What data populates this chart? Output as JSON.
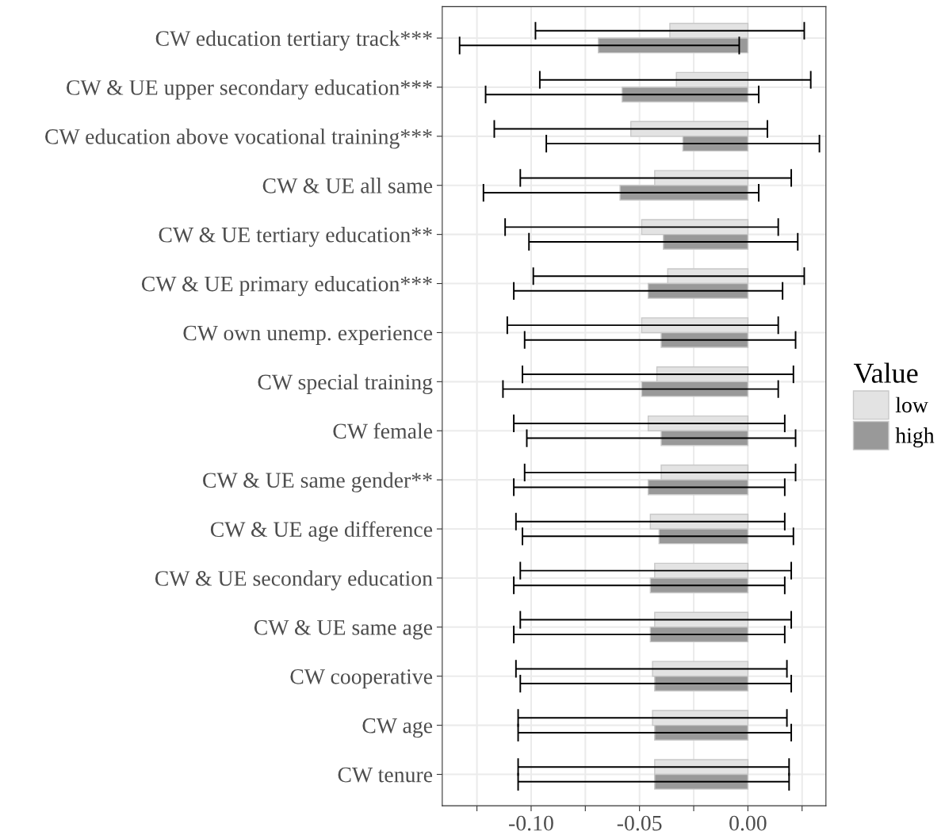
{
  "chart_data": {
    "type": "bar",
    "orientation": "horizontal",
    "categories": [
      "CW education tertiary track***",
      "CW & UE upper secondary education***",
      "CW education above vocational training***",
      "CW & UE all same",
      "CW & UE tertiary education**",
      "CW & UE primary education***",
      "CW own unemp. experience",
      "CW special training",
      "CW female",
      "CW & UE same gender**",
      "CW & UE age difference",
      "CW & UE secondary education",
      "CW & UE same age",
      "CW cooperative",
      "CW age",
      "CW tenure"
    ],
    "series": [
      {
        "name": "low",
        "color": "#e3e3e3",
        "values": [
          -0.036,
          -0.033,
          -0.054,
          -0.043,
          -0.049,
          -0.037,
          -0.049,
          -0.042,
          -0.046,
          -0.04,
          -0.045,
          -0.043,
          -0.043,
          -0.044,
          -0.044,
          -0.043
        ],
        "errors": [
          [
            -0.098,
            0.026
          ],
          [
            -0.096,
            0.029
          ],
          [
            -0.117,
            0.009
          ],
          [
            -0.105,
            0.02
          ],
          [
            -0.112,
            0.014
          ],
          [
            -0.099,
            0.026
          ],
          [
            -0.111,
            0.014
          ],
          [
            -0.104,
            0.021
          ],
          [
            -0.108,
            0.017
          ],
          [
            -0.103,
            0.022
          ],
          [
            -0.107,
            0.017
          ],
          [
            -0.105,
            0.02
          ],
          [
            -0.105,
            0.02
          ],
          [
            -0.107,
            0.018
          ],
          [
            -0.106,
            0.018
          ],
          [
            -0.106,
            0.019
          ]
        ]
      },
      {
        "name": "high",
        "color": "#999999",
        "values": [
          -0.069,
          -0.058,
          -0.03,
          -0.059,
          -0.039,
          -0.046,
          -0.04,
          -0.049,
          -0.04,
          -0.046,
          -0.041,
          -0.045,
          -0.045,
          -0.043,
          -0.043,
          -0.043
        ],
        "errors": [
          [
            -0.133,
            -0.004
          ],
          [
            -0.121,
            0.005
          ],
          [
            -0.093,
            0.033
          ],
          [
            -0.122,
            0.005
          ],
          [
            -0.101,
            0.023
          ],
          [
            -0.108,
            0.016
          ],
          [
            -0.103,
            0.022
          ],
          [
            -0.113,
            0.014
          ],
          [
            -0.102,
            0.022
          ],
          [
            -0.108,
            0.017
          ],
          [
            -0.104,
            0.021
          ],
          [
            -0.108,
            0.017
          ],
          [
            -0.108,
            0.017
          ],
          [
            -0.105,
            0.02
          ],
          [
            -0.106,
            0.02
          ],
          [
            -0.106,
            0.019
          ]
        ]
      }
    ],
    "legend_title": "Value",
    "legend": "right",
    "xlim": [
      -0.141,
      0.036
    ],
    "xticks": [
      {
        "value": -0.125,
        "label": null
      },
      {
        "value": -0.1,
        "label": "-0.10"
      },
      {
        "value": -0.075,
        "label": null
      },
      {
        "value": -0.05,
        "label": "-0.05"
      },
      {
        "value": -0.025,
        "label": null
      },
      {
        "value": 0,
        "label": "0.00"
      },
      {
        "value": 0.025,
        "label": null
      }
    ],
    "grid": true
  }
}
